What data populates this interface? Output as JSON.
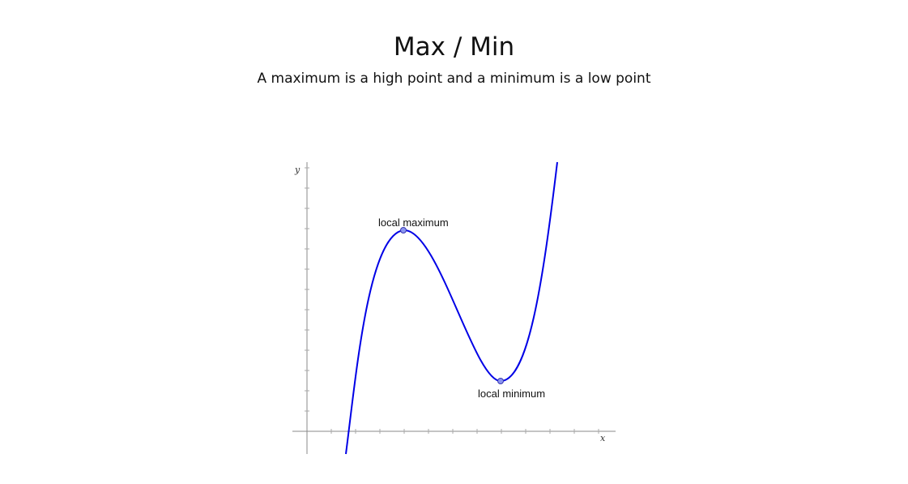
{
  "header": {
    "title": "Max / Min",
    "subtitle": "A maximum is a high point and a minimum is a low point"
  },
  "graph": {
    "axes": {
      "x_label": "x",
      "y_label": "y"
    },
    "points": {
      "maximum_label": "local maximum",
      "minimum_label": "local minimum"
    },
    "colors": {
      "curve": "#0000e6",
      "point_fill": "#8a94f0",
      "axis": "#888888"
    }
  }
}
